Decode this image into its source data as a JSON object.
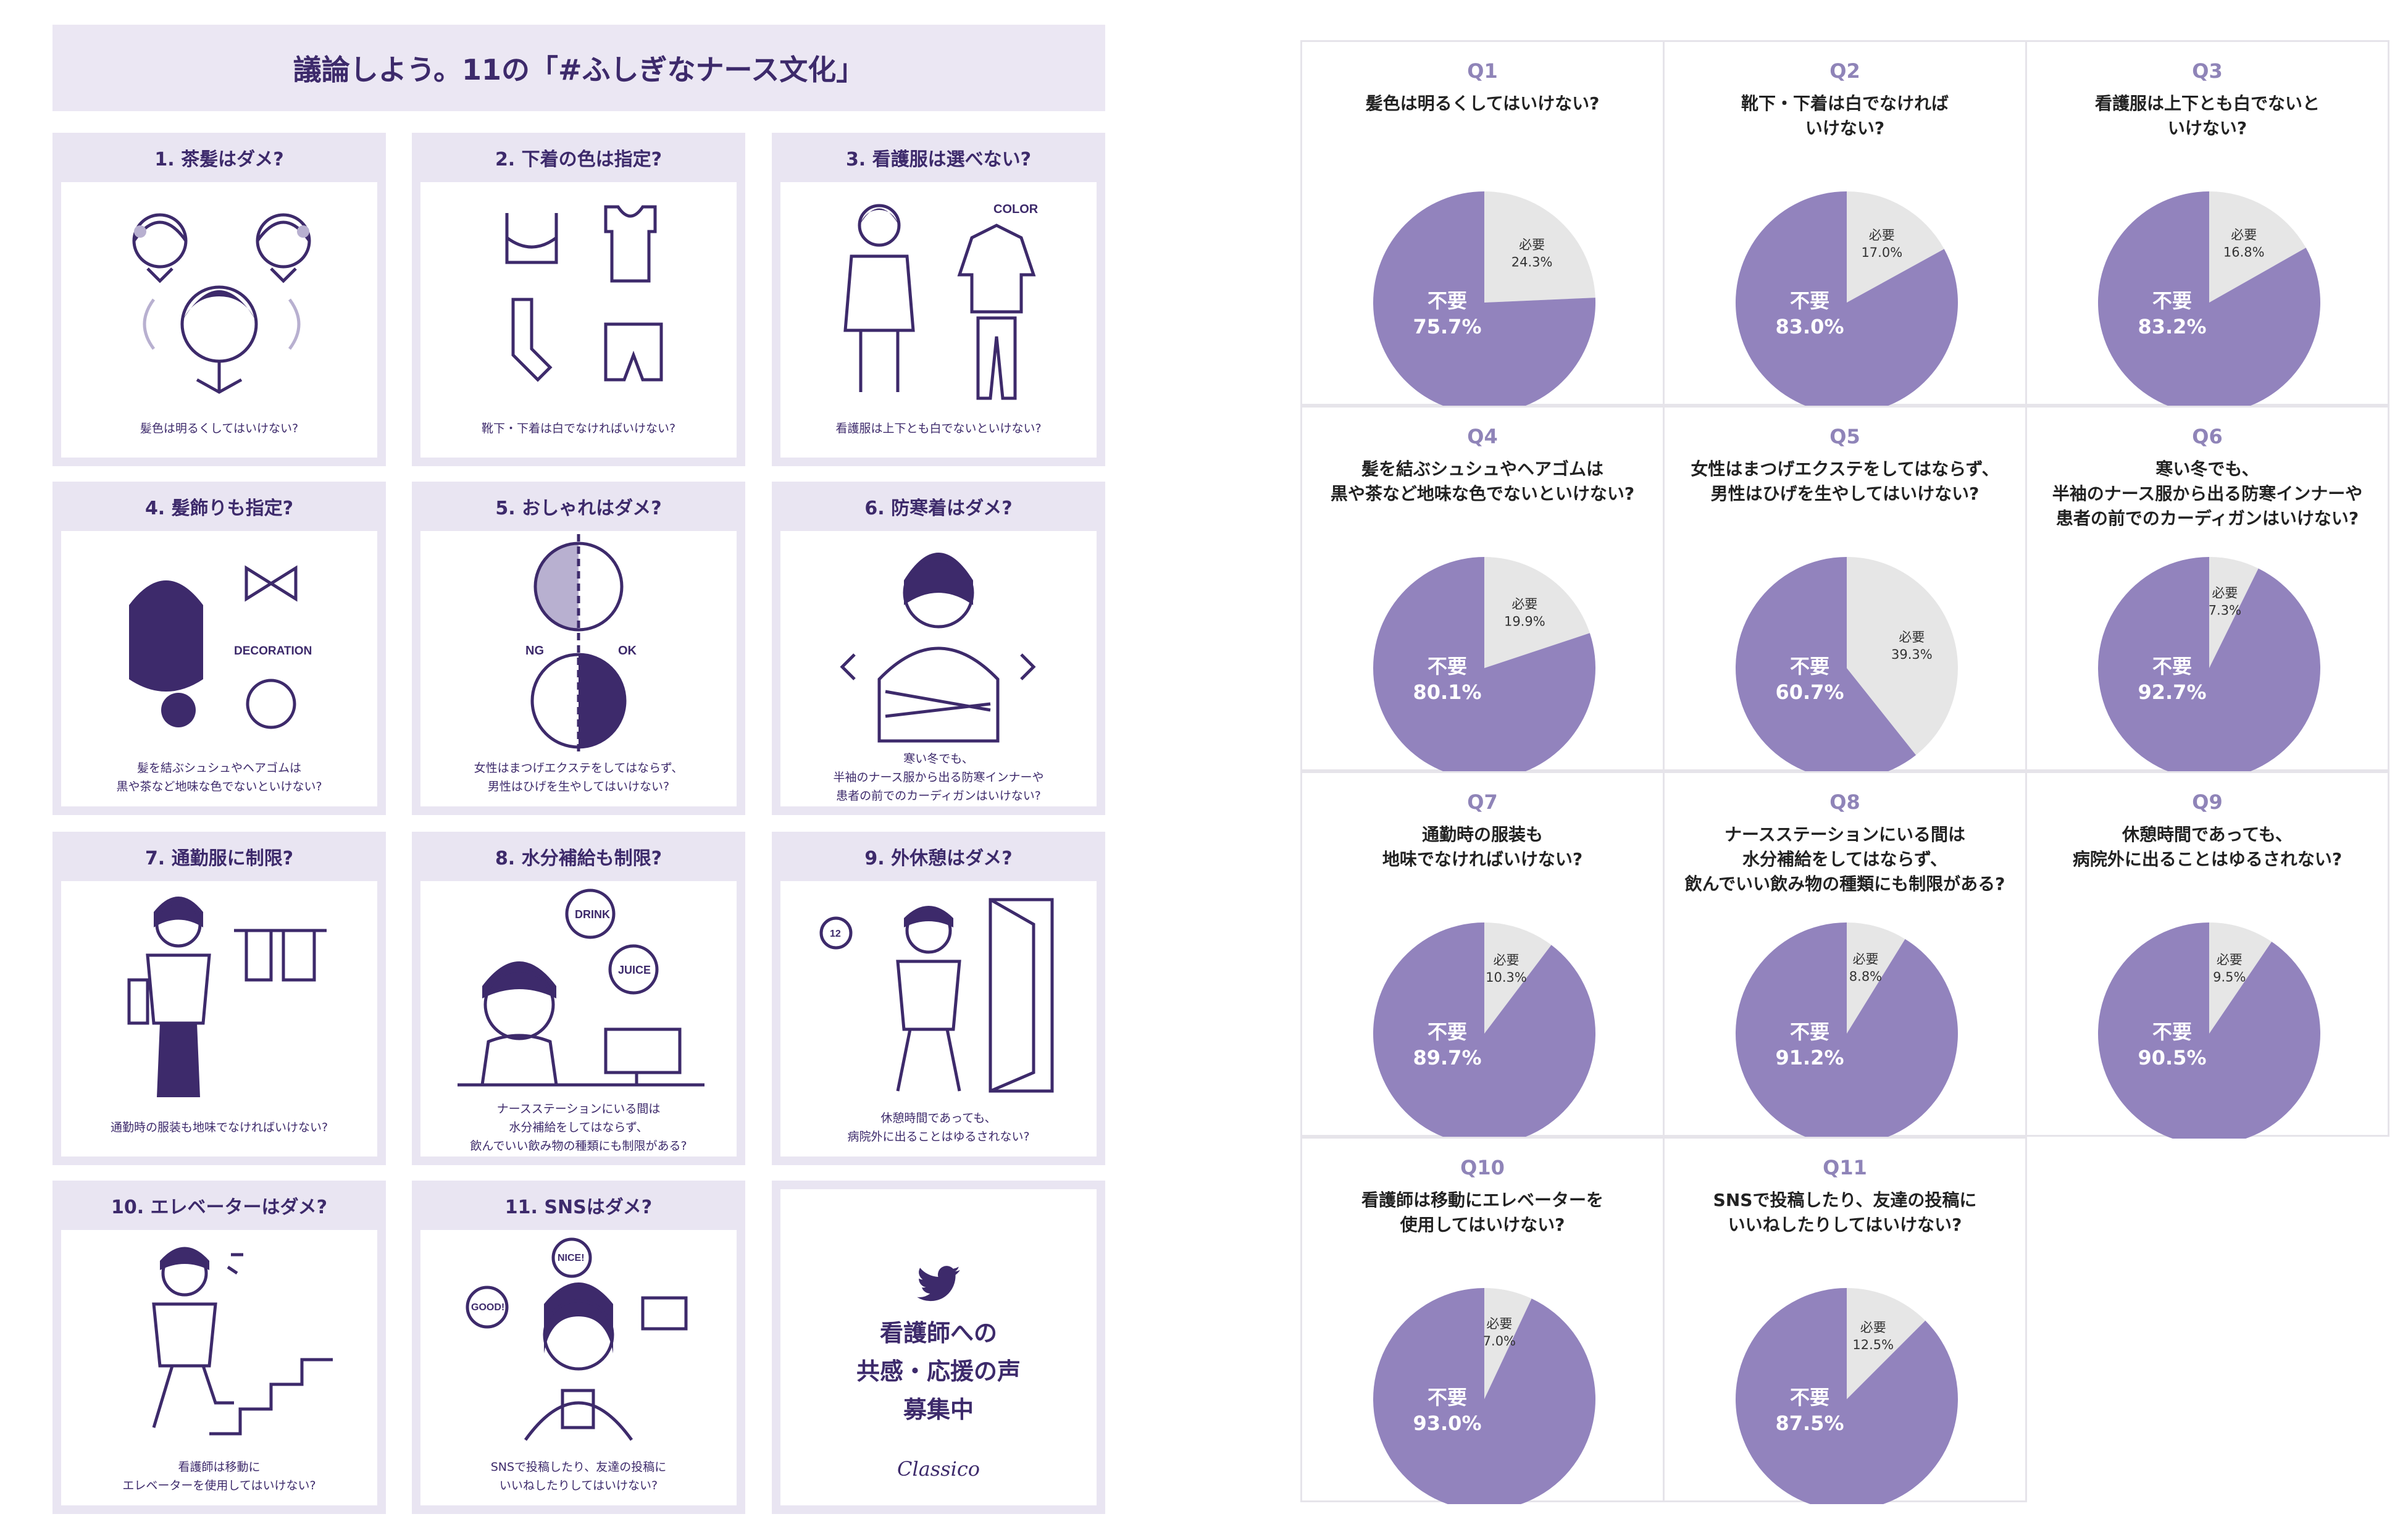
{
  "infographic": {
    "title": "議論しよう。11の「#ふしぎなナース文化」",
    "cards": [
      {
        "title": "1. 茶髪はダメ?",
        "caption": "髪色は明るくしてはいけない?"
      },
      {
        "title": "2. 下着の色は指定?",
        "caption": "靴下・下着は白でなければいけない?"
      },
      {
        "title": "3. 看護服は選べない?",
        "caption": "看護服は上下とも白でないといけない?"
      },
      {
        "title": "4. 髪飾りも指定?",
        "caption": "髪を結ぶシュシュやヘアゴムは\n黒や茶など地味な色でないといけない?"
      },
      {
        "title": "5. おしゃれはダメ?",
        "caption": "女性はまつげエクステをしてはならず、\n男性はひげを生やしてはいけない?"
      },
      {
        "title": "6. 防寒着はダメ?",
        "caption": "寒い冬でも、\n半袖のナース服から出る防寒インナーや\n患者の前でのカーディガンはいけない?"
      },
      {
        "title": "7. 通勤服に制限?",
        "caption": "通勤時の服装も地味でなければいけない?"
      },
      {
        "title": "8. 水分補給も制限?",
        "caption": "ナースステーションにいる間は\n水分補給をしてはならず、\n飲んでいい飲み物の種類にも制限がある?"
      },
      {
        "title": "9. 外休憩はダメ?",
        "caption": "休憩時間であっても、\n病院外に出ることはゆるされない?"
      },
      {
        "title": "10. エレベーターはダメ?",
        "caption": "看護師は移動に\nエレベーターを使用してはいけない?"
      },
      {
        "title": "11. SNSはダメ?",
        "caption": "SNSで投稿したり、友達の投稿に\nいいねしたりしてはいけない?"
      }
    ],
    "illustration_text": {
      "color": "COLOR",
      "decoration": "DECORATION",
      "ng": "NG",
      "ok": "OK",
      "drink": "DRINK",
      "juice": "JUICE",
      "nice": "NICE!",
      "good": "GOOD!",
      "clock": "12"
    },
    "cta": {
      "icon": "twitter-bird-icon",
      "text": "看護師への\n共感・応援の声\n募集中",
      "brand": "Classico"
    },
    "colors": {
      "accent": "#3d2a6b",
      "panel": "#e9e5f2"
    }
  },
  "chart_data": {
    "type": "pie",
    "slice_labels": {
      "major": "不要",
      "minor": "必要"
    },
    "colors": {
      "major": "#9283bd",
      "minor": "#e6e6e6",
      "question_number": "#8f84b8"
    },
    "charts": [
      {
        "id": "Q1",
        "question": "髪色は明るくしてはいけない?",
        "values": {
          "不要": 75.7,
          "必要": 24.3
        }
      },
      {
        "id": "Q2",
        "question": "靴下・下着は白でなければ\nいけない?",
        "values": {
          "不要": 83.0,
          "必要": 17.0
        }
      },
      {
        "id": "Q3",
        "question": "看護服は上下とも白でないと\nいけない?",
        "values": {
          "不要": 83.2,
          "必要": 16.8
        }
      },
      {
        "id": "Q4",
        "question": "髪を結ぶシュシュやヘアゴムは\n黒や茶など地味な色でないといけない?",
        "values": {
          "不要": 80.1,
          "必要": 19.9
        }
      },
      {
        "id": "Q5",
        "question": "女性はまつげエクステをしてはならず、\n男性はひげを生やしてはいけない?",
        "values": {
          "不要": 60.7,
          "必要": 39.3
        }
      },
      {
        "id": "Q6",
        "question": "寒い冬でも、\n半袖のナース服から出る防寒インナーや\n患者の前でのカーディガンはいけない?",
        "values": {
          "不要": 92.7,
          "必要": 7.3
        }
      },
      {
        "id": "Q7",
        "question": "通勤時の服装も\n地味でなければいけない?",
        "values": {
          "不要": 89.7,
          "必要": 10.3
        }
      },
      {
        "id": "Q8",
        "question": "ナースステーションにいる間は\n水分補給をしてはならず、\n飲んでいい飲み物の種類にも制限がある?",
        "values": {
          "不要": 91.2,
          "必要": 8.8
        }
      },
      {
        "id": "Q9",
        "question": "休憩時間であっても、\n病院外に出ることはゆるされない?",
        "values": {
          "不要": 90.5,
          "必要": 9.5
        }
      },
      {
        "id": "Q10",
        "question": "看護師は移動にエレベーターを\n使用してはいけない?",
        "values": {
          "不要": 93.0,
          "必要": 7.0
        }
      },
      {
        "id": "Q11",
        "question": "SNSで投稿したり、友達の投稿に\nいいねしたりしてはいけない?",
        "values": {
          "不要": 87.5,
          "必要": 12.5
        }
      }
    ]
  }
}
